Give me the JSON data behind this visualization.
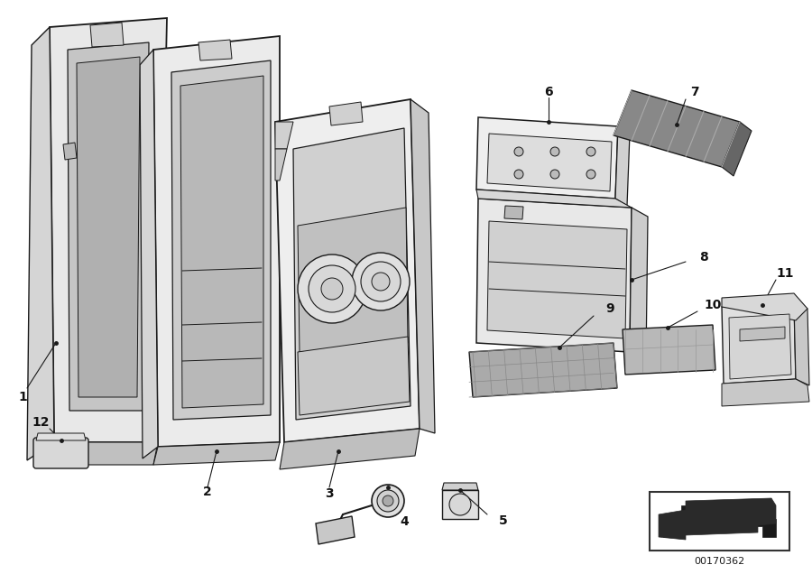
{
  "background_color": "#ffffff",
  "diagram_number": "00170362",
  "line_color": "#1a1a1a",
  "label_color": "#111111",
  "part_fill": "#f0f0f0",
  "part_fill_dark": "#d8d8d8",
  "part_side": "#c8c8c8"
}
